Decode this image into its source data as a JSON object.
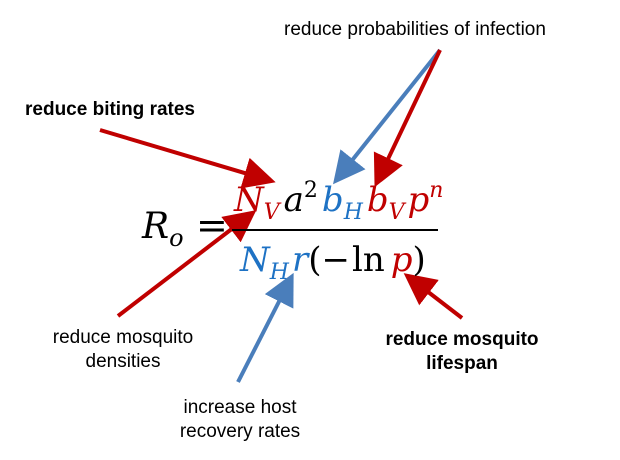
{
  "labels": {
    "reduce_probabilities": "reduce probabilities of infection",
    "reduce_biting": "reduce biting rates",
    "reduce_densities_1": "reduce mosquito",
    "reduce_densities_2": "densities",
    "increase_recovery_1": "increase host",
    "increase_recovery_2": "recovery rates",
    "reduce_lifespan_1": "reduce mosquito",
    "reduce_lifespan_2": "lifespan"
  },
  "equation": {
    "lhs_symbol": "R",
    "lhs_sub": "o",
    "equals": "=",
    "num_NV": "N",
    "num_NV_sub": "V",
    "num_a": "a",
    "num_a_sup": "2",
    "num_bH": "b",
    "num_bH_sub": "H",
    "num_bV": "b",
    "num_bV_sub": "V",
    "num_p": "p",
    "num_p_sup": "n",
    "den_NH": "N",
    "den_NH_sub": "H",
    "den_r": "r",
    "den_open": "(−",
    "den_ln": "ln",
    "den_p": "p",
    "den_close": ")"
  },
  "colors": {
    "red": "#c00000",
    "blue": "#4a7ebb",
    "text": "#000000"
  }
}
